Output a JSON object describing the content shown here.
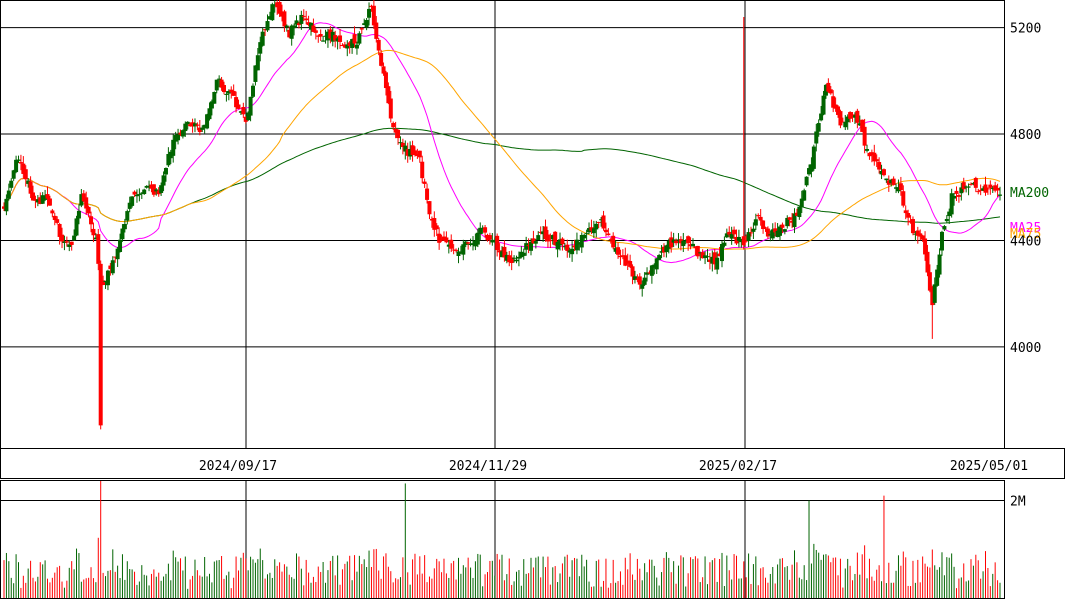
{
  "chart_data": {
    "type": "candlestick",
    "price_panel": {
      "y_ticks": [
        "4000",
        "4400",
        "4800",
        "5200"
      ],
      "ylim": [
        3620,
        5300
      ],
      "x_labels": [
        "2024/09/17",
        "2024/11/29",
        "2025/02/17",
        "2025/05/01"
      ],
      "grid": true,
      "legend": [
        {
          "name": "MA200",
          "color": "#006400"
        },
        {
          "name": "MA25",
          "color": "#ff00ff"
        },
        {
          "name": "MA75",
          "color": "#ffa500"
        }
      ],
      "colors": {
        "up": "#006400",
        "down": "#ff0000"
      },
      "close_anchors": [
        [
          0,
          4530
        ],
        [
          6,
          4720
        ],
        [
          12,
          4560
        ],
        [
          18,
          4550
        ],
        [
          20,
          4500
        ],
        [
          24,
          4400
        ],
        [
          28,
          4370
        ],
        [
          32,
          4580
        ],
        [
          38,
          4400
        ],
        [
          40,
          4220
        ],
        [
          46,
          4330
        ],
        [
          52,
          4550
        ],
        [
          58,
          4600
        ],
        [
          64,
          4580
        ],
        [
          70,
          4780
        ],
        [
          76,
          4850
        ],
        [
          82,
          4820
        ],
        [
          88,
          5000
        ],
        [
          94,
          4950
        ],
        [
          100,
          4840
        ],
        [
          106,
          5150
        ],
        [
          112,
          5300
        ],
        [
          118,
          5180
        ],
        [
          124,
          5250
        ],
        [
          130,
          5150
        ],
        [
          136,
          5180
        ],
        [
          140,
          5120
        ],
        [
          146,
          5150
        ],
        [
          152,
          5280
        ],
        [
          160,
          4850
        ],
        [
          166,
          4740
        ],
        [
          172,
          4700
        ],
        [
          176,
          4500
        ],
        [
          180,
          4400
        ],
        [
          186,
          4370
        ],
        [
          192,
          4380
        ],
        [
          198,
          4440
        ],
        [
          204,
          4370
        ],
        [
          210,
          4320
        ],
        [
          216,
          4380
        ],
        [
          222,
          4420
        ],
        [
          228,
          4400
        ],
        [
          234,
          4360
        ],
        [
          240,
          4420
        ],
        [
          246,
          4480
        ],
        [
          252,
          4380
        ],
        [
          258,
          4300
        ],
        [
          264,
          4230
        ],
        [
          270,
          4340
        ],
        [
          276,
          4390
        ],
        [
          282,
          4410
        ],
        [
          288,
          4340
        ],
        [
          294,
          4320
        ],
        [
          300,
          4430
        ],
        [
          306,
          4380
        ],
        [
          312,
          4490
        ],
        [
          316,
          4420
        ],
        [
          322,
          4450
        ],
        [
          328,
          4500
        ],
        [
          334,
          4700
        ],
        [
          340,
          4980
        ],
        [
          346,
          4850
        ],
        [
          352,
          4880
        ],
        [
          358,
          4720
        ],
        [
          364,
          4640
        ],
        [
          370,
          4600
        ],
        [
          376,
          4440
        ],
        [
          380,
          4420
        ],
        [
          384,
          4150
        ],
        [
          388,
          4420
        ],
        [
          392,
          4560
        ],
        [
          398,
          4600
        ],
        [
          404,
          4600
        ],
        [
          408,
          4580
        ],
        [
          412,
          4580
        ]
      ],
      "events": [
        {
          "i": 40,
          "low": 3690,
          "type": "down"
        },
        {
          "i": 306,
          "high": 5240
        },
        {
          "i": 384,
          "low": 4030
        }
      ]
    },
    "volume_panel": {
      "y_ticks": [
        "2M"
      ],
      "ylim": [
        0,
        2400000
      ],
      "spikes": [
        {
          "i": 166,
          "value": 2350000
        },
        {
          "i": 333,
          "value": 2000000
        },
        {
          "i": 364,
          "value": 2100000
        }
      ]
    }
  }
}
